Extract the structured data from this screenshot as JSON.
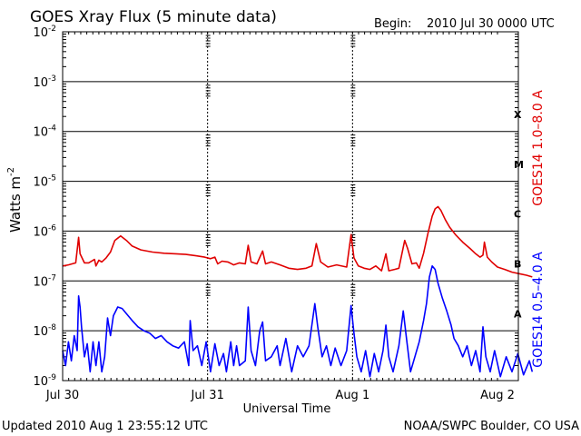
{
  "header": {
    "title": "GOES Xray Flux (5 minute data)",
    "begin_label": "Begin:",
    "begin_value": "2010 Jul 30 0000 UTC"
  },
  "footer": {
    "updated": "Updated 2010 Aug  1 23:55:12 UTC",
    "credit": "NOAA/SWPC Boulder, CO USA"
  },
  "colors": {
    "long_channel": "#e00000",
    "short_channel": "#0000ff",
    "grid": "#000000"
  },
  "chart_data": {
    "type": "line",
    "xlabel": "Universal Time",
    "ylabel": "Watts m",
    "ylabel_superscript": "-2",
    "y_scale": "log",
    "ylim": [
      1e-09,
      0.01
    ],
    "xlim_days": [
      0,
      3
    ],
    "y_ticks": [
      {
        "value": 0.01,
        "base": "10",
        "exp": "-2"
      },
      {
        "value": 0.001,
        "base": "10",
        "exp": "-3"
      },
      {
        "value": 0.0001,
        "base": "10",
        "exp": "-4"
      },
      {
        "value": 1e-05,
        "base": "10",
        "exp": "-5"
      },
      {
        "value": 1e-06,
        "base": "10",
        "exp": "-6"
      },
      {
        "value": 1e-07,
        "base": "10",
        "exp": "-7"
      },
      {
        "value": 1e-08,
        "base": "10",
        "exp": "-8"
      },
      {
        "value": 1e-09,
        "base": "10",
        "exp": "-9"
      }
    ],
    "x_ticks": [
      {
        "day": 0,
        "label": "Jul 30"
      },
      {
        "day": 1,
        "label": "Jul 31"
      },
      {
        "day": 2,
        "label": "Aug 1"
      },
      {
        "day": 3,
        "label": "Aug 2"
      }
    ],
    "flare_classes": [
      {
        "label": "X",
        "value": 0.00022
      },
      {
        "label": "M",
        "value": 2.2e-05
      },
      {
        "label": "C",
        "value": 2.2e-06
      },
      {
        "label": "B",
        "value": 2.2e-07
      },
      {
        "label": "A",
        "value": 2.2e-08
      }
    ],
    "series": [
      {
        "name": "GOES14 1.0–8.0 A",
        "color": "#e00000",
        "points": [
          [
            0.0,
            2e-07
          ],
          [
            0.04,
            2.1e-07
          ],
          [
            0.09,
            2.3e-07
          ],
          [
            0.11,
            7.5e-07
          ],
          [
            0.12,
            3.5e-07
          ],
          [
            0.15,
            2.3e-07
          ],
          [
            0.18,
            2.3e-07
          ],
          [
            0.22,
            2.7e-07
          ],
          [
            0.23,
            2e-07
          ],
          [
            0.25,
            2.6e-07
          ],
          [
            0.27,
            2.4e-07
          ],
          [
            0.3,
            2.9e-07
          ],
          [
            0.33,
            3.8e-07
          ],
          [
            0.36,
            6.5e-07
          ],
          [
            0.4,
            8e-07
          ],
          [
            0.44,
            6.5e-07
          ],
          [
            0.48,
            5e-07
          ],
          [
            0.54,
            4.2e-07
          ],
          [
            0.62,
            3.8e-07
          ],
          [
            0.7,
            3.6e-07
          ],
          [
            0.78,
            3.5e-07
          ],
          [
            0.85,
            3.4e-07
          ],
          [
            0.92,
            3.2e-07
          ],
          [
            0.98,
            3e-07
          ],
          [
            1.02,
            2.8e-07
          ],
          [
            1.05,
            3e-07
          ],
          [
            1.07,
            2.2e-07
          ],
          [
            1.1,
            2.5e-07
          ],
          [
            1.14,
            2.4e-07
          ],
          [
            1.18,
            2.1e-07
          ],
          [
            1.22,
            2.3e-07
          ],
          [
            1.26,
            2.2e-07
          ],
          [
            1.28,
            5.2e-07
          ],
          [
            1.3,
            2.4e-07
          ],
          [
            1.34,
            2.2e-07
          ],
          [
            1.38,
            4e-07
          ],
          [
            1.4,
            2.2e-07
          ],
          [
            1.44,
            2.4e-07
          ],
          [
            1.5,
            2.1e-07
          ],
          [
            1.56,
            1.8e-07
          ],
          [
            1.62,
            1.7e-07
          ],
          [
            1.68,
            1.8e-07
          ],
          [
            1.72,
            2e-07
          ],
          [
            1.75,
            5.6e-07
          ],
          [
            1.78,
            2.4e-07
          ],
          [
            1.83,
            1.9e-07
          ],
          [
            1.89,
            2.1e-07
          ],
          [
            1.96,
            1.9e-07
          ],
          [
            1.99,
            8.5e-07
          ],
          [
            2.01,
            2.9e-07
          ],
          [
            2.04,
            2e-07
          ],
          [
            2.08,
            1.8e-07
          ],
          [
            2.12,
            1.7e-07
          ],
          [
            2.16,
            2e-07
          ],
          [
            2.2,
            1.6e-07
          ],
          [
            2.23,
            3.5e-07
          ],
          [
            2.25,
            1.6e-07
          ],
          [
            2.29,
            1.7e-07
          ],
          [
            2.32,
            1.8e-07
          ],
          [
            2.36,
            6.5e-07
          ],
          [
            2.38,
            4.5e-07
          ],
          [
            2.41,
            2.2e-07
          ],
          [
            2.44,
            2.3e-07
          ],
          [
            2.46,
            1.8e-07
          ],
          [
            2.49,
            3.6e-07
          ],
          [
            2.52,
            9e-07
          ],
          [
            2.55,
            2e-06
          ],
          [
            2.57,
            2.8e-06
          ],
          [
            2.59,
            3.1e-06
          ],
          [
            2.61,
            2.6e-06
          ],
          [
            2.64,
            1.7e-06
          ],
          [
            2.67,
            1.2e-06
          ],
          [
            2.71,
            8.5e-07
          ],
          [
            2.76,
            6e-07
          ],
          [
            2.81,
            4.5e-07
          ],
          [
            2.85,
            3.5e-07
          ],
          [
            2.88,
            3e-07
          ],
          [
            2.9,
            3.3e-07
          ],
          [
            2.91,
            6e-07
          ],
          [
            2.93,
            3e-07
          ],
          [
            2.96,
            2.4e-07
          ],
          [
            3.0,
            1.9e-07
          ],
          [
            3.05,
            1.7e-07
          ],
          [
            3.1,
            1.5e-07
          ],
          [
            3.15,
            1.4e-07
          ],
          [
            3.2,
            1.3e-07
          ],
          [
            3.24,
            1.2e-07
          ]
        ]
      },
      {
        "name": "GOES14 0.5–4.0 A",
        "color": "#0000ff",
        "points": [
          [
            0.0,
            4e-09
          ],
          [
            0.02,
            2e-09
          ],
          [
            0.04,
            6e-09
          ],
          [
            0.06,
            2.5e-09
          ],
          [
            0.08,
            8e-09
          ],
          [
            0.1,
            4e-09
          ],
          [
            0.11,
            5e-08
          ],
          [
            0.12,
            3e-08
          ],
          [
            0.13,
            1.2e-08
          ],
          [
            0.15,
            3e-09
          ],
          [
            0.17,
            5.5e-09
          ],
          [
            0.19,
            1.5e-09
          ],
          [
            0.21,
            6e-09
          ],
          [
            0.23,
            2e-09
          ],
          [
            0.25,
            6e-09
          ],
          [
            0.27,
            1.5e-09
          ],
          [
            0.29,
            3e-09
          ],
          [
            0.31,
            1.8e-08
          ],
          [
            0.33,
            8e-09
          ],
          [
            0.35,
            2e-08
          ],
          [
            0.38,
            3e-08
          ],
          [
            0.41,
            2.8e-08
          ],
          [
            0.44,
            2.2e-08
          ],
          [
            0.48,
            1.6e-08
          ],
          [
            0.52,
            1.2e-08
          ],
          [
            0.56,
            1e-08
          ],
          [
            0.6,
            9e-09
          ],
          [
            0.64,
            7e-09
          ],
          [
            0.68,
            8e-09
          ],
          [
            0.72,
            6e-09
          ],
          [
            0.76,
            5e-09
          ],
          [
            0.8,
            4.5e-09
          ],
          [
            0.84,
            6e-09
          ],
          [
            0.87,
            2e-09
          ],
          [
            0.88,
            1.6e-08
          ],
          [
            0.9,
            4e-09
          ],
          [
            0.93,
            5e-09
          ],
          [
            0.96,
            2e-09
          ],
          [
            0.99,
            6e-09
          ],
          [
            1.02,
            1.5e-09
          ],
          [
            1.05,
            5.5e-09
          ],
          [
            1.08,
            2e-09
          ],
          [
            1.11,
            3.5e-09
          ],
          [
            1.13,
            1.5e-09
          ],
          [
            1.16,
            6e-09
          ],
          [
            1.18,
            2e-09
          ],
          [
            1.2,
            5e-09
          ],
          [
            1.22,
            2e-09
          ],
          [
            1.26,
            2.5e-09
          ],
          [
            1.28,
            3e-08
          ],
          [
            1.3,
            4e-09
          ],
          [
            1.33,
            2e-09
          ],
          [
            1.36,
            1e-08
          ],
          [
            1.38,
            1.5e-08
          ],
          [
            1.4,
            2.5e-09
          ],
          [
            1.44,
            3e-09
          ],
          [
            1.48,
            5e-09
          ],
          [
            1.5,
            2e-09
          ],
          [
            1.54,
            7e-09
          ],
          [
            1.58,
            1.5e-09
          ],
          [
            1.62,
            5e-09
          ],
          [
            1.66,
            3e-09
          ],
          [
            1.7,
            5e-09
          ],
          [
            1.74,
            3.5e-08
          ],
          [
            1.76,
            1.2e-08
          ],
          [
            1.79,
            3e-09
          ],
          [
            1.82,
            5e-09
          ],
          [
            1.85,
            2e-09
          ],
          [
            1.88,
            4.5e-09
          ],
          [
            1.92,
            2e-09
          ],
          [
            1.96,
            4e-09
          ],
          [
            1.99,
            3.2e-08
          ],
          [
            2.01,
            9e-09
          ],
          [
            2.03,
            3e-09
          ],
          [
            2.06,
            1.5e-09
          ],
          [
            2.09,
            4e-09
          ],
          [
            2.12,
            1.2e-09
          ],
          [
            2.15,
            3.5e-09
          ],
          [
            2.18,
            1.5e-09
          ],
          [
            2.21,
            4e-09
          ],
          [
            2.23,
            1.3e-08
          ],
          [
            2.25,
            3e-09
          ],
          [
            2.28,
            1.5e-09
          ],
          [
            2.32,
            5e-09
          ],
          [
            2.35,
            2.5e-08
          ],
          [
            2.37,
            8e-09
          ],
          [
            2.4,
            1.5e-09
          ],
          [
            2.43,
            3e-09
          ],
          [
            2.46,
            6e-09
          ],
          [
            2.49,
            1.6e-08
          ],
          [
            2.51,
            3.5e-08
          ],
          [
            2.53,
            1.2e-07
          ],
          [
            2.55,
            2e-07
          ],
          [
            2.57,
            1.7e-07
          ],
          [
            2.59,
            9e-08
          ],
          [
            2.62,
            4.5e-08
          ],
          [
            2.65,
            2.5e-08
          ],
          [
            2.68,
            1.3e-08
          ],
          [
            2.7,
            7e-09
          ],
          [
            2.73,
            5e-09
          ],
          [
            2.76,
            3e-09
          ],
          [
            2.79,
            5e-09
          ],
          [
            2.82,
            2e-09
          ],
          [
            2.85,
            4e-09
          ],
          [
            2.88,
            1.5e-09
          ],
          [
            2.9,
            1.2e-08
          ],
          [
            2.92,
            3e-09
          ],
          [
            2.95,
            1.5e-09
          ],
          [
            2.98,
            4e-09
          ],
          [
            3.02,
            1.2e-09
          ],
          [
            3.06,
            3e-09
          ],
          [
            3.1,
            1.5e-09
          ],
          [
            3.14,
            3.5e-09
          ],
          [
            3.18,
            1.3e-09
          ],
          [
            3.22,
            2.5e-09
          ],
          [
            3.24,
            1.5e-09
          ]
        ]
      }
    ]
  }
}
